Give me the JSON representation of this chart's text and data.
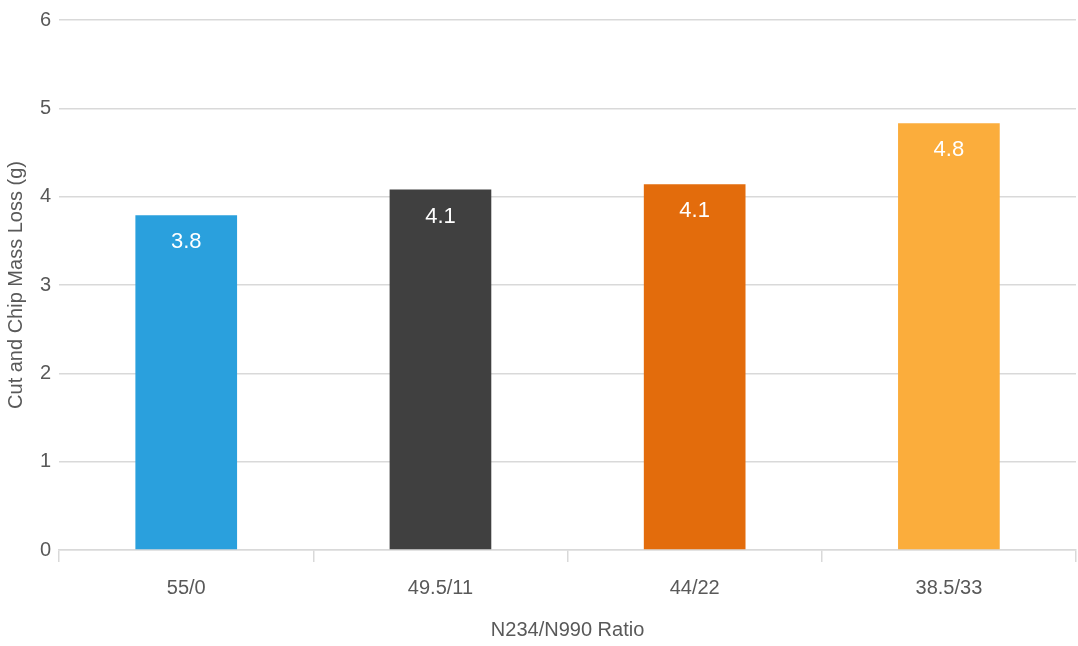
{
  "chart_data": {
    "type": "bar",
    "xlabel": "N234/N990 Ratio",
    "ylabel": "Cut and Chip Mass Loss (g)",
    "categories": [
      "55/0",
      "49.5/11",
      "44/22",
      "38.5/33"
    ],
    "values": [
      3.79,
      4.08,
      4.14,
      4.83
    ],
    "colors": [
      "#2aa0dd",
      "#404040",
      "#e36c0c",
      "#fbad3c"
    ],
    "value_labels": [
      "3.8",
      "4.1",
      "4.1",
      "4.8"
    ],
    "ylim": [
      0,
      6
    ],
    "yticks": [
      0,
      1,
      2,
      3,
      4,
      5,
      6
    ],
    "grid": "y",
    "legend": false
  }
}
